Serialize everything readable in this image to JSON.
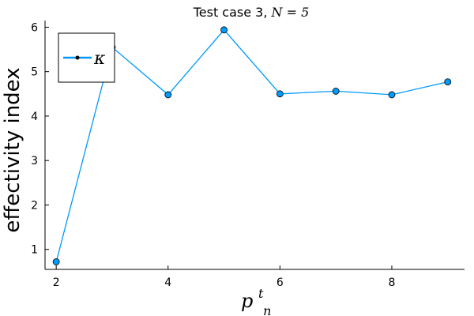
{
  "chart_data": {
    "type": "line",
    "title": "Test case 3, ",
    "title_math": "N = 5",
    "ylabel": "effectivity index",
    "xlabel_math": {
      "base": "p",
      "sup": "t",
      "sub": "n"
    },
    "x": [
      2,
      3,
      4,
      5,
      6,
      7,
      8,
      9
    ],
    "series": [
      {
        "name": "κ",
        "values": [
          0.72,
          5.55,
          4.48,
          5.94,
          4.5,
          4.56,
          4.48,
          4.77
        ],
        "color": "#009AFA"
      }
    ],
    "xlim": [
      1.8,
      9.3
    ],
    "ylim": [
      0.55,
      6.15
    ],
    "xticks": [
      2,
      4,
      6,
      8
    ],
    "yticks": [
      1,
      2,
      3,
      4,
      5,
      6
    ],
    "grid": false,
    "legend_position": "top-left"
  }
}
